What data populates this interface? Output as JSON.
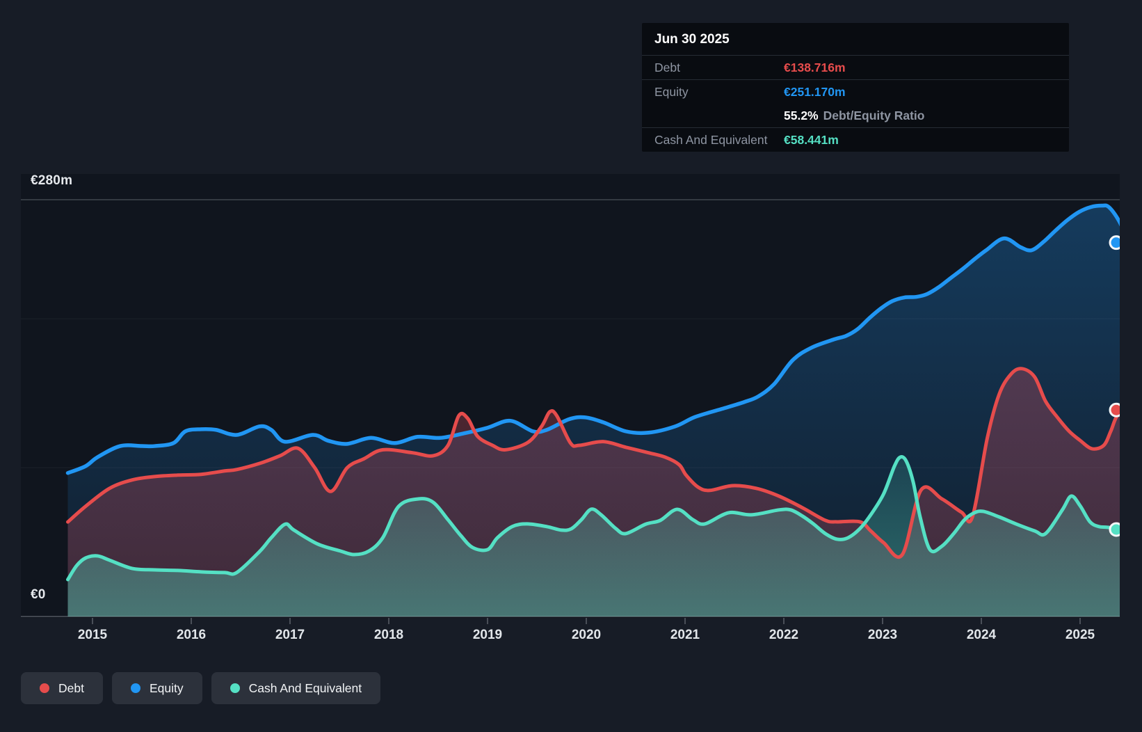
{
  "tooltip": {
    "date": "Jun 30 2025",
    "debt_label": "Debt",
    "debt_value": "€138.716m",
    "equity_label": "Equity",
    "equity_value": "€251.170m",
    "ratio_value": "55.2%",
    "ratio_text": "Debt/Equity Ratio",
    "cash_label": "Cash And Equivalent",
    "cash_value": "€58.441m"
  },
  "legend": {
    "items": [
      {
        "label": "Debt",
        "color": "#e64c4c"
      },
      {
        "label": "Equity",
        "color": "#2196f3"
      },
      {
        "label": "Cash And Equivalent",
        "color": "#55e0c4"
      }
    ]
  },
  "chart_data": {
    "type": "area",
    "unit": "EUR millions",
    "x_axis": {
      "years": [
        2015,
        2016,
        2017,
        2018,
        2019,
        2020,
        2021,
        2022,
        2023,
        2024,
        2025
      ]
    },
    "y_axis": {
      "min": 0,
      "max": 280,
      "label_top": "€280m",
      "label_bottom": "€0",
      "gridline_values": [
        280,
        200,
        100,
        0
      ]
    },
    "series": [
      {
        "name": "Equity",
        "color": "#2196f3",
        "points": [
          [
            2014.75,
            96.4
          ],
          [
            2014.93,
            101
          ],
          [
            2015.05,
            107
          ],
          [
            2015.28,
            114.5
          ],
          [
            2015.5,
            114.5
          ],
          [
            2015.63,
            114.5
          ],
          [
            2015.82,
            116.5
          ],
          [
            2015.94,
            124.4
          ],
          [
            2016.1,
            125.8
          ],
          [
            2016.25,
            125.4
          ],
          [
            2016.46,
            122
          ],
          [
            2016.69,
            127.7
          ],
          [
            2016.81,
            125.4
          ],
          [
            2016.95,
            117.4
          ],
          [
            2017.23,
            122
          ],
          [
            2017.39,
            118
          ],
          [
            2017.58,
            116
          ],
          [
            2017.82,
            120
          ],
          [
            2018.06,
            116.5
          ],
          [
            2018.29,
            120.7
          ],
          [
            2018.52,
            120
          ],
          [
            2018.76,
            123
          ],
          [
            2019.0,
            126.8
          ],
          [
            2019.23,
            131.5
          ],
          [
            2019.46,
            124.4
          ],
          [
            2019.6,
            125.4
          ],
          [
            2019.82,
            132.4
          ],
          [
            2019.98,
            133.8
          ],
          [
            2020.17,
            130.5
          ],
          [
            2020.4,
            124.4
          ],
          [
            2020.63,
            123.5
          ],
          [
            2020.9,
            127.7
          ],
          [
            2021.1,
            134
          ],
          [
            2021.37,
            139.4
          ],
          [
            2021.6,
            144.1
          ],
          [
            2021.74,
            147.8
          ],
          [
            2021.9,
            156
          ],
          [
            2022.09,
            172.2
          ],
          [
            2022.28,
            180.6
          ],
          [
            2022.51,
            186.2
          ],
          [
            2022.63,
            188.5
          ],
          [
            2022.75,
            193.2
          ],
          [
            2022.87,
            200.7
          ],
          [
            2022.99,
            207.3
          ],
          [
            2023.1,
            211.9
          ],
          [
            2023.22,
            214.3
          ],
          [
            2023.34,
            214.7
          ],
          [
            2023.45,
            216.6
          ],
          [
            2023.57,
            221.3
          ],
          [
            2023.69,
            227.4
          ],
          [
            2023.81,
            233.4
          ],
          [
            2023.93,
            240
          ],
          [
            2024.05,
            246.1
          ],
          [
            2024.23,
            254
          ],
          [
            2024.4,
            248
          ],
          [
            2024.51,
            246.1
          ],
          [
            2024.63,
            251.7
          ],
          [
            2024.75,
            259.2
          ],
          [
            2024.87,
            266.2
          ],
          [
            2024.99,
            271.8
          ],
          [
            2025.11,
            275.1
          ],
          [
            2025.22,
            276
          ],
          [
            2025.29,
            275.1
          ],
          [
            2025.39,
            266.2
          ],
          [
            2025.5,
            251.17
          ]
        ]
      },
      {
        "name": "Debt",
        "color": "#e64c4c",
        "points": [
          [
            2014.75,
            63.5
          ],
          [
            2014.93,
            74
          ],
          [
            2015.17,
            86
          ],
          [
            2015.4,
            91.7
          ],
          [
            2015.63,
            94
          ],
          [
            2015.87,
            95
          ],
          [
            2016.1,
            95.5
          ],
          [
            2016.34,
            97.8
          ],
          [
            2016.46,
            98.7
          ],
          [
            2016.7,
            103
          ],
          [
            2016.9,
            108
          ],
          [
            2017.08,
            113
          ],
          [
            2017.25,
            100
          ],
          [
            2017.41,
            84
          ],
          [
            2017.58,
            100
          ],
          [
            2017.75,
            106
          ],
          [
            2017.94,
            112
          ],
          [
            2018.24,
            110
          ],
          [
            2018.45,
            108
          ],
          [
            2018.6,
            115
          ],
          [
            2018.71,
            135
          ],
          [
            2018.8,
            133
          ],
          [
            2018.9,
            121
          ],
          [
            2019.05,
            115
          ],
          [
            2019.18,
            112
          ],
          [
            2019.41,
            117
          ],
          [
            2019.55,
            128
          ],
          [
            2019.63,
            137.5
          ],
          [
            2019.7,
            135
          ],
          [
            2019.84,
            116.5
          ],
          [
            2019.93,
            115
          ],
          [
            2020.17,
            117.5
          ],
          [
            2020.4,
            113.7
          ],
          [
            2020.63,
            110
          ],
          [
            2020.8,
            107
          ],
          [
            2020.94,
            102
          ],
          [
            2021.01,
            95
          ],
          [
            2021.13,
            87
          ],
          [
            2021.25,
            84.7
          ],
          [
            2021.48,
            87.9
          ],
          [
            2021.72,
            86.1
          ],
          [
            2021.95,
            80.9
          ],
          [
            2022.19,
            73
          ],
          [
            2022.42,
            64.6
          ],
          [
            2022.54,
            63.6
          ],
          [
            2022.77,
            63.6
          ],
          [
            2022.88,
            57.5
          ],
          [
            2023.01,
            49.6
          ],
          [
            2023.2,
            41.6
          ],
          [
            2023.39,
            85
          ],
          [
            2023.6,
            79
          ],
          [
            2023.8,
            70
          ],
          [
            2023.91,
            67
          ],
          [
            2024.06,
            119.8
          ],
          [
            2024.18,
            149.2
          ],
          [
            2024.3,
            162.8
          ],
          [
            2024.41,
            166.5
          ],
          [
            2024.54,
            160.9
          ],
          [
            2024.65,
            144.6
          ],
          [
            2024.77,
            133.8
          ],
          [
            2024.89,
            124.4
          ],
          [
            2025.0,
            118.3
          ],
          [
            2025.12,
            112.7
          ],
          [
            2025.24,
            115
          ],
          [
            2025.31,
            124.4
          ],
          [
            2025.38,
            135.2
          ],
          [
            2025.5,
            138.716
          ]
        ]
      },
      {
        "name": "Cash And Equivalent",
        "color": "#55e0c4",
        "points": [
          [
            2014.75,
            24.8
          ],
          [
            2014.84,
            34.2
          ],
          [
            2014.93,
            39.3
          ],
          [
            2015.05,
            40.7
          ],
          [
            2015.17,
            37.9
          ],
          [
            2015.4,
            32.3
          ],
          [
            2015.63,
            31.3
          ],
          [
            2015.87,
            30.9
          ],
          [
            2016.1,
            30
          ],
          [
            2016.34,
            29.5
          ],
          [
            2016.46,
            29.5
          ],
          [
            2016.69,
            43.5
          ],
          [
            2016.81,
            52.9
          ],
          [
            2016.95,
            62
          ],
          [
            2017.04,
            58
          ],
          [
            2017.28,
            48.7
          ],
          [
            2017.51,
            44
          ],
          [
            2017.65,
            41.6
          ],
          [
            2017.8,
            44
          ],
          [
            2017.94,
            53
          ],
          [
            2018.1,
            74
          ],
          [
            2018.3,
            79
          ],
          [
            2018.45,
            76.7
          ],
          [
            2018.6,
            65
          ],
          [
            2018.73,
            54.3
          ],
          [
            2018.85,
            46.3
          ],
          [
            2019.0,
            44.9
          ],
          [
            2019.1,
            52.9
          ],
          [
            2019.25,
            60.4
          ],
          [
            2019.4,
            62.2
          ],
          [
            2019.6,
            60.4
          ],
          [
            2019.75,
            58
          ],
          [
            2019.85,
            59
          ],
          [
            2019.95,
            65
          ],
          [
            2020.05,
            72.1
          ],
          [
            2020.15,
            68.3
          ],
          [
            2020.3,
            59
          ],
          [
            2020.4,
            55.7
          ],
          [
            2020.6,
            62
          ],
          [
            2020.75,
            64.6
          ],
          [
            2020.92,
            72
          ],
          [
            2021.08,
            65
          ],
          [
            2021.2,
            62.2
          ],
          [
            2021.44,
            69.7
          ],
          [
            2021.67,
            68.3
          ],
          [
            2021.95,
            71.6
          ],
          [
            2022.07,
            71.6
          ],
          [
            2022.19,
            67.4
          ],
          [
            2022.3,
            62.2
          ],
          [
            2022.42,
            55.7
          ],
          [
            2022.54,
            51.9
          ],
          [
            2022.65,
            52.9
          ],
          [
            2022.77,
            59
          ],
          [
            2022.88,
            68.3
          ],
          [
            2023.01,
            82.3
          ],
          [
            2023.12,
            101
          ],
          [
            2023.18,
            107.1
          ],
          [
            2023.24,
            104.3
          ],
          [
            2023.31,
            90.3
          ],
          [
            2023.38,
            66.9
          ],
          [
            2023.48,
            44.9
          ],
          [
            2023.6,
            47.2
          ],
          [
            2023.72,
            55.7
          ],
          [
            2023.83,
            65
          ],
          [
            2023.93,
            69.7
          ],
          [
            2024.02,
            70.6
          ],
          [
            2024.18,
            66.9
          ],
          [
            2024.35,
            62.2
          ],
          [
            2024.54,
            57.5
          ],
          [
            2024.65,
            55.7
          ],
          [
            2024.82,
            71.6
          ],
          [
            2024.91,
            80.9
          ],
          [
            2025.0,
            74.4
          ],
          [
            2025.1,
            63.6
          ],
          [
            2025.19,
            60.4
          ],
          [
            2025.28,
            59.9
          ],
          [
            2025.5,
            58.441
          ]
        ]
      }
    ]
  }
}
